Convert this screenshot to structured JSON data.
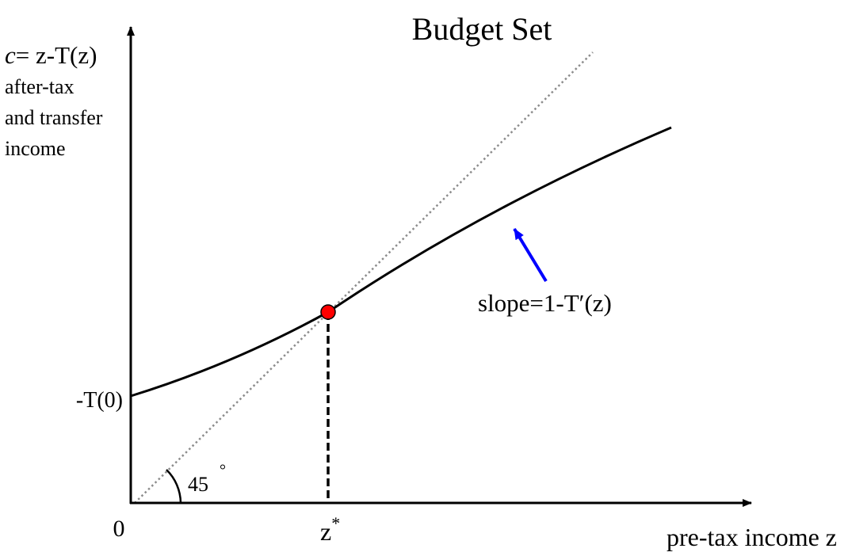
{
  "title": "Budget Set",
  "y_axis": {
    "formula_var": "c",
    "formula_rest": "= z-T(z)",
    "description_lines": [
      "after-tax",
      "and transfer",
      "income"
    ]
  },
  "x_axis": {
    "label": "pre-tax income z",
    "origin_label": "0"
  },
  "intercept_label": "-T(0)",
  "break_even": {
    "label_base": "z",
    "label_sup": "*"
  },
  "angle_label": "45",
  "angle_degree_mark": "°",
  "slope_label": "slope=1-T′(z)",
  "colors": {
    "axis": "#000000",
    "budget_curve": "#000000",
    "line_45": "#8c8c8c",
    "point": "#ff0000",
    "arrow": "#0000ff"
  }
}
